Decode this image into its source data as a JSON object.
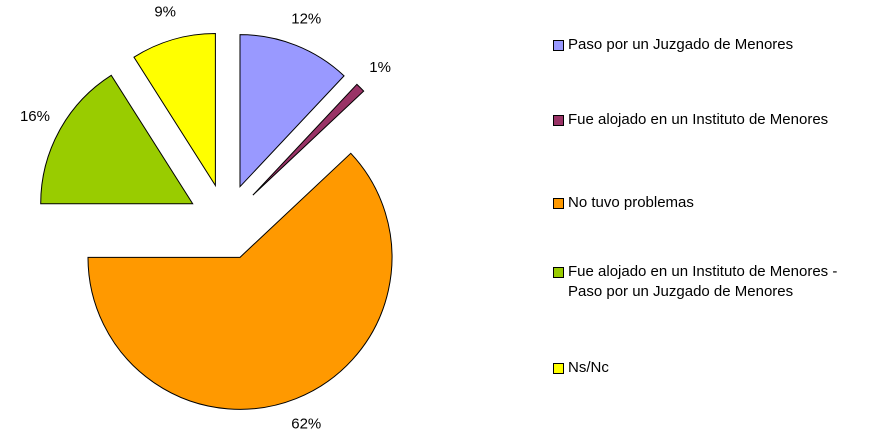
{
  "chart_data": {
    "type": "pie",
    "categories": [
      "Paso por un Juzgado de Menores",
      "Fue alojado en un Instituto de Menores",
      "No tuvo problemas",
      "Fue alojado en un Instituto de Menores - Paso por un Juzgado de Menores",
      "Ns/Nc"
    ],
    "values": [
      12,
      1,
      62,
      16,
      9
    ],
    "value_labels": [
      "12%",
      "1%",
      "62%",
      "16%",
      "9%"
    ],
    "colors": [
      "#9999ff",
      "#993366",
      "#ff9900",
      "#99cc00",
      "#ffff00"
    ],
    "legend": "right"
  }
}
